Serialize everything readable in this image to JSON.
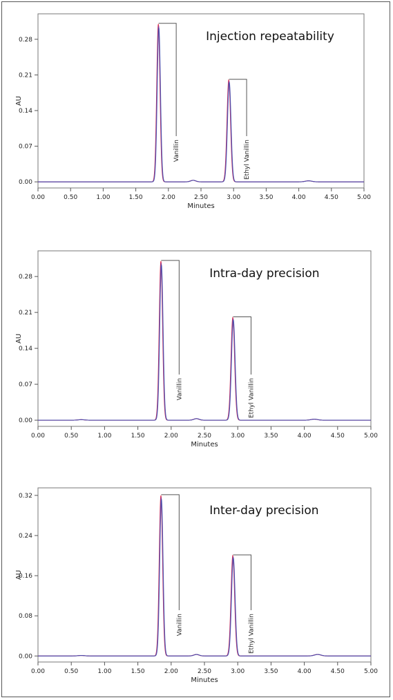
{
  "chart_data": [
    {
      "type": "line",
      "title": "Injection repeatability",
      "xlabel": "Minutes",
      "ylabel": "AU",
      "xlim": [
        0,
        5
      ],
      "ylim": [
        -0.012,
        0.33
      ],
      "xticks": [
        "0.00",
        "0.50",
        "1.00",
        "1.50",
        "2.00",
        "2.50",
        "3.00",
        "3.50",
        "4.00",
        "4.50",
        "5.00"
      ],
      "yticks": [
        {
          "label": "0.00",
          "value": 0.0
        },
        {
          "label": "0.07",
          "value": 0.07
        },
        {
          "label": "0.14",
          "value": 0.14
        },
        {
          "label": "0.21",
          "value": 0.21
        },
        {
          "label": "0.28",
          "value": 0.28
        }
      ],
      "peaks": [
        {
          "name": "Vanillin",
          "rt": 1.85,
          "height": 0.31,
          "width": 0.025
        },
        {
          "name": "Ethyl Vanillin",
          "rt": 2.93,
          "height": 0.2,
          "width": 0.027
        }
      ],
      "minor_peaks": [
        {
          "rt": 2.38,
          "height": 0.003,
          "width": 0.04
        },
        {
          "rt": 4.15,
          "height": 0.002,
          "width": 0.05
        }
      ]
    },
    {
      "type": "line",
      "title": "Intra-day precision",
      "xlabel": "Minutes",
      "ylabel": "AU",
      "xlim": [
        0,
        5
      ],
      "ylim": [
        -0.012,
        0.33
      ],
      "xticks": [
        "0.00",
        "0.50",
        "1.00",
        "1.50",
        "2.00",
        "2.50",
        "3.00",
        "3.50",
        "4.00",
        "4.50",
        "5.00"
      ],
      "yticks": [
        {
          "label": "0.00",
          "value": 0.0
        },
        {
          "label": "0.07",
          "value": 0.07
        },
        {
          "label": "0.14",
          "value": 0.14
        },
        {
          "label": "0.21",
          "value": 0.21
        },
        {
          "label": "0.28",
          "value": 0.28
        }
      ],
      "peaks": [
        {
          "name": "Vanillin",
          "rt": 1.85,
          "height": 0.31,
          "width": 0.025
        },
        {
          "name": "Ethyl Vanillin",
          "rt": 2.93,
          "height": 0.2,
          "width": 0.027
        }
      ],
      "minor_peaks": [
        {
          "rt": 0.65,
          "height": 0.001,
          "width": 0.05
        },
        {
          "rt": 2.38,
          "height": 0.003,
          "width": 0.04
        },
        {
          "rt": 4.15,
          "height": 0.002,
          "width": 0.05
        }
      ]
    },
    {
      "type": "line",
      "title": "Inter-day precision",
      "xlabel": "Minutes",
      "ylabel": "AU",
      "xlim": [
        0,
        5
      ],
      "ylim": [
        -0.012,
        0.335
      ],
      "xticks": [
        "0.00",
        "0.50",
        "1.00",
        "1.50",
        "2.00",
        "2.50",
        "3.00",
        "3.50",
        "4.00",
        "4.50",
        "5.00"
      ],
      "yticks": [
        {
          "label": "0.00",
          "value": 0.0
        },
        {
          "label": "0.08",
          "value": 0.08
        },
        {
          "label": "0.16",
          "value": 0.16
        },
        {
          "label": "0.24",
          "value": 0.24
        },
        {
          "label": "0.32",
          "value": 0.32
        }
      ],
      "peaks": [
        {
          "name": "Vanillin",
          "rt": 1.85,
          "height": 0.32,
          "width": 0.025
        },
        {
          "name": "Ethyl Vanillin",
          "rt": 2.93,
          "height": 0.2,
          "width": 0.027
        }
      ],
      "minor_peaks": [
        {
          "rt": 0.65,
          "height": 0.001,
          "width": 0.05
        },
        {
          "rt": 2.38,
          "height": 0.003,
          "width": 0.04
        },
        {
          "rt": 4.2,
          "height": 0.003,
          "width": 0.05
        }
      ]
    }
  ],
  "trace_colors": [
    "#e03050",
    "#7a3fa0",
    "#3a4fb0"
  ]
}
